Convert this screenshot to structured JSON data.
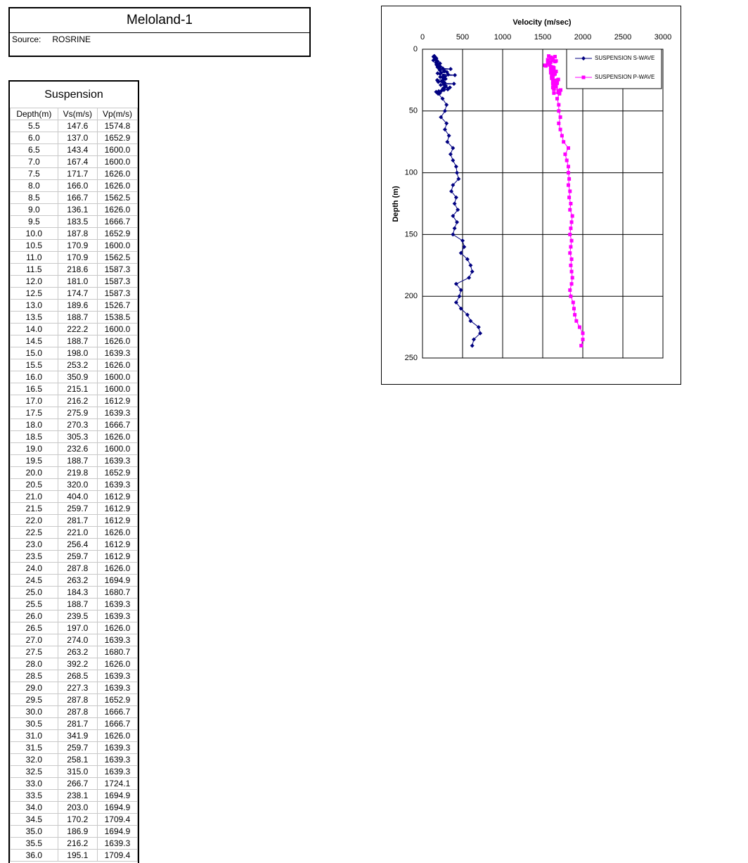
{
  "header": {
    "title": "Meloland-1",
    "source_label": "Source:",
    "source": "ROSRINE"
  },
  "table": {
    "title": "Suspension",
    "columns": [
      "Depth(m)",
      "Vs(m/s)",
      "Vp(m/s)"
    ],
    "rows": [
      [
        "5.5",
        "147.6",
        "1574.8"
      ],
      [
        "6.0",
        "137.0",
        "1652.9"
      ],
      [
        "6.5",
        "143.4",
        "1600.0"
      ],
      [
        "7.0",
        "167.4",
        "1600.0"
      ],
      [
        "7.5",
        "171.7",
        "1626.0"
      ],
      [
        "8.0",
        "166.0",
        "1626.0"
      ],
      [
        "8.5",
        "166.7",
        "1562.5"
      ],
      [
        "9.0",
        "136.1",
        "1626.0"
      ],
      [
        "9.5",
        "183.5",
        "1666.7"
      ],
      [
        "10.0",
        "187.8",
        "1652.9"
      ],
      [
        "10.5",
        "170.9",
        "1600.0"
      ],
      [
        "11.0",
        "170.9",
        "1562.5"
      ],
      [
        "11.5",
        "218.6",
        "1587.3"
      ],
      [
        "12.0",
        "181.0",
        "1587.3"
      ],
      [
        "12.5",
        "174.7",
        "1587.3"
      ],
      [
        "13.0",
        "189.6",
        "1526.7"
      ],
      [
        "13.5",
        "188.7",
        "1538.5"
      ],
      [
        "14.0",
        "222.2",
        "1600.0"
      ],
      [
        "14.5",
        "188.7",
        "1626.0"
      ],
      [
        "15.0",
        "198.0",
        "1639.3"
      ],
      [
        "15.5",
        "253.2",
        "1626.0"
      ],
      [
        "16.0",
        "350.9",
        "1600.0"
      ],
      [
        "16.5",
        "215.1",
        "1600.0"
      ],
      [
        "17.0",
        "216.2",
        "1612.9"
      ],
      [
        "17.5",
        "275.9",
        "1639.3"
      ],
      [
        "18.0",
        "270.3",
        "1666.7"
      ],
      [
        "18.5",
        "305.3",
        "1626.0"
      ],
      [
        "19.0",
        "232.6",
        "1600.0"
      ],
      [
        "19.5",
        "188.7",
        "1639.3"
      ],
      [
        "20.0",
        "219.8",
        "1652.9"
      ],
      [
        "20.5",
        "320.0",
        "1639.3"
      ],
      [
        "21.0",
        "404.0",
        "1612.9"
      ],
      [
        "21.5",
        "259.7",
        "1612.9"
      ],
      [
        "22.0",
        "281.7",
        "1612.9"
      ],
      [
        "22.5",
        "221.0",
        "1626.0"
      ],
      [
        "23.0",
        "256.4",
        "1612.9"
      ],
      [
        "23.5",
        "259.7",
        "1612.9"
      ],
      [
        "24.0",
        "287.8",
        "1626.0"
      ],
      [
        "24.5",
        "263.2",
        "1694.9"
      ],
      [
        "25.0",
        "184.3",
        "1680.7"
      ],
      [
        "25.5",
        "188.7",
        "1639.3"
      ],
      [
        "26.0",
        "239.5",
        "1639.3"
      ],
      [
        "26.5",
        "197.0",
        "1626.0"
      ],
      [
        "27.0",
        "274.0",
        "1639.3"
      ],
      [
        "27.5",
        "263.2",
        "1680.7"
      ],
      [
        "28.0",
        "392.2",
        "1626.0"
      ],
      [
        "28.5",
        "268.5",
        "1639.3"
      ],
      [
        "29.0",
        "227.3",
        "1639.3"
      ],
      [
        "29.5",
        "287.8",
        "1652.9"
      ],
      [
        "30.0",
        "287.8",
        "1666.7"
      ],
      [
        "30.5",
        "281.7",
        "1666.7"
      ],
      [
        "31.0",
        "341.9",
        "1626.0"
      ],
      [
        "31.5",
        "259.7",
        "1639.3"
      ],
      [
        "32.0",
        "258.1",
        "1639.3"
      ],
      [
        "32.5",
        "315.0",
        "1639.3"
      ],
      [
        "33.0",
        "266.7",
        "1724.1"
      ],
      [
        "33.5",
        "238.1",
        "1694.9"
      ],
      [
        "34.0",
        "203.0",
        "1694.9"
      ],
      [
        "34.5",
        "170.2",
        "1709.4"
      ],
      [
        "35.0",
        "186.9",
        "1694.9"
      ],
      [
        "35.5",
        "216.2",
        "1639.3"
      ],
      [
        "36.0",
        "195.1",
        "1709.4"
      ]
    ]
  },
  "chart_data": {
    "type": "line",
    "title": "Velocity (m/sec)",
    "x_label": "Depth (m)",
    "x": [
      5.5,
      6,
      6.5,
      7,
      7.5,
      8,
      8.5,
      9,
      9.5,
      10,
      10.5,
      11,
      11.5,
      12,
      12.5,
      13,
      13.5,
      14,
      14.5,
      15,
      15.5,
      16,
      16.5,
      17,
      17.5,
      18,
      18.5,
      19,
      19.5,
      20,
      20.5,
      21,
      21.5,
      22,
      22.5,
      23,
      23.5,
      24,
      24.5,
      25,
      25.5,
      26,
      26.5,
      27,
      27.5,
      28,
      28.5,
      29,
      29.5,
      30,
      30.5,
      31,
      31.5,
      32,
      32.5,
      33,
      33.5,
      34,
      34.5,
      35,
      35.5,
      36,
      40,
      45,
      50,
      55,
      60,
      65,
      70,
      75,
      80,
      85,
      90,
      95,
      100,
      105,
      110,
      115,
      120,
      125,
      130,
      135,
      140,
      145,
      150,
      155,
      160,
      165,
      170,
      175,
      180,
      185,
      190,
      195,
      200,
      205,
      210,
      215,
      220,
      225,
      230,
      235,
      240
    ],
    "xlim": [
      0,
      250
    ],
    "xticks": [
      0,
      50,
      100,
      150,
      200,
      250
    ],
    "ylim": [
      0,
      3000
    ],
    "yticks": [
      0,
      500,
      1000,
      1500,
      2000,
      2500,
      3000
    ],
    "grid": true,
    "legend": "top-right",
    "series": [
      {
        "name": "SUSPENSION S-WAVE",
        "color": "#000080",
        "values": [
          147.6,
          137.0,
          143.4,
          167.4,
          171.7,
          166.0,
          166.7,
          136.1,
          183.5,
          187.8,
          170.9,
          170.9,
          218.6,
          181.0,
          174.7,
          189.6,
          188.7,
          222.2,
          188.7,
          198.0,
          253.2,
          350.9,
          215.1,
          216.2,
          275.9,
          270.3,
          305.3,
          232.6,
          188.7,
          219.8,
          320.0,
          404.0,
          259.7,
          281.7,
          221.0,
          256.4,
          259.7,
          287.8,
          263.2,
          184.3,
          188.7,
          239.5,
          197.0,
          274.0,
          263.2,
          392.2,
          268.5,
          227.3,
          287.8,
          287.8,
          281.7,
          341.9,
          259.7,
          258.1,
          315.0,
          266.7,
          238.1,
          203.0,
          170.2,
          186.9,
          216.2,
          195.1,
          250,
          300,
          280,
          230,
          300,
          280,
          330,
          310,
          380,
          350,
          380,
          420,
          430,
          450,
          380,
          360,
          420,
          400,
          440,
          380,
          430,
          400,
          380,
          500,
          520,
          480,
          560,
          600,
          620,
          580,
          420,
          480,
          460,
          420,
          480,
          560,
          600,
          700,
          720,
          640,
          620
        ]
      },
      {
        "name": "SUSPENSION P-WAVE",
        "color": "#ff00ff",
        "values": [
          1574.8,
          1652.9,
          1600.0,
          1600.0,
          1626.0,
          1626.0,
          1562.5,
          1626.0,
          1666.7,
          1652.9,
          1600.0,
          1562.5,
          1587.3,
          1587.3,
          1587.3,
          1526.7,
          1538.5,
          1600.0,
          1626.0,
          1639.3,
          1626.0,
          1600.0,
          1600.0,
          1612.9,
          1639.3,
          1666.7,
          1626.0,
          1600.0,
          1639.3,
          1652.9,
          1639.3,
          1612.9,
          1612.9,
          1612.9,
          1626.0,
          1612.9,
          1612.9,
          1626.0,
          1694.9,
          1680.7,
          1639.3,
          1639.3,
          1626.0,
          1639.3,
          1680.7,
          1626.0,
          1639.3,
          1639.3,
          1652.9,
          1666.7,
          1666.7,
          1626.0,
          1639.3,
          1639.3,
          1639.3,
          1724.1,
          1694.9,
          1694.9,
          1709.4,
          1694.9,
          1639.3,
          1709.4,
          1680,
          1700,
          1700,
          1720,
          1700,
          1720,
          1740,
          1760,
          1820,
          1780,
          1800,
          1820,
          1820,
          1830,
          1820,
          1840,
          1830,
          1850,
          1840,
          1870,
          1860,
          1850,
          1840,
          1860,
          1850,
          1840,
          1860,
          1850,
          1860,
          1870,
          1860,
          1840,
          1850,
          1880,
          1890,
          1900,
          1920,
          1960,
          2000,
          2000,
          1980
        ]
      }
    ]
  }
}
